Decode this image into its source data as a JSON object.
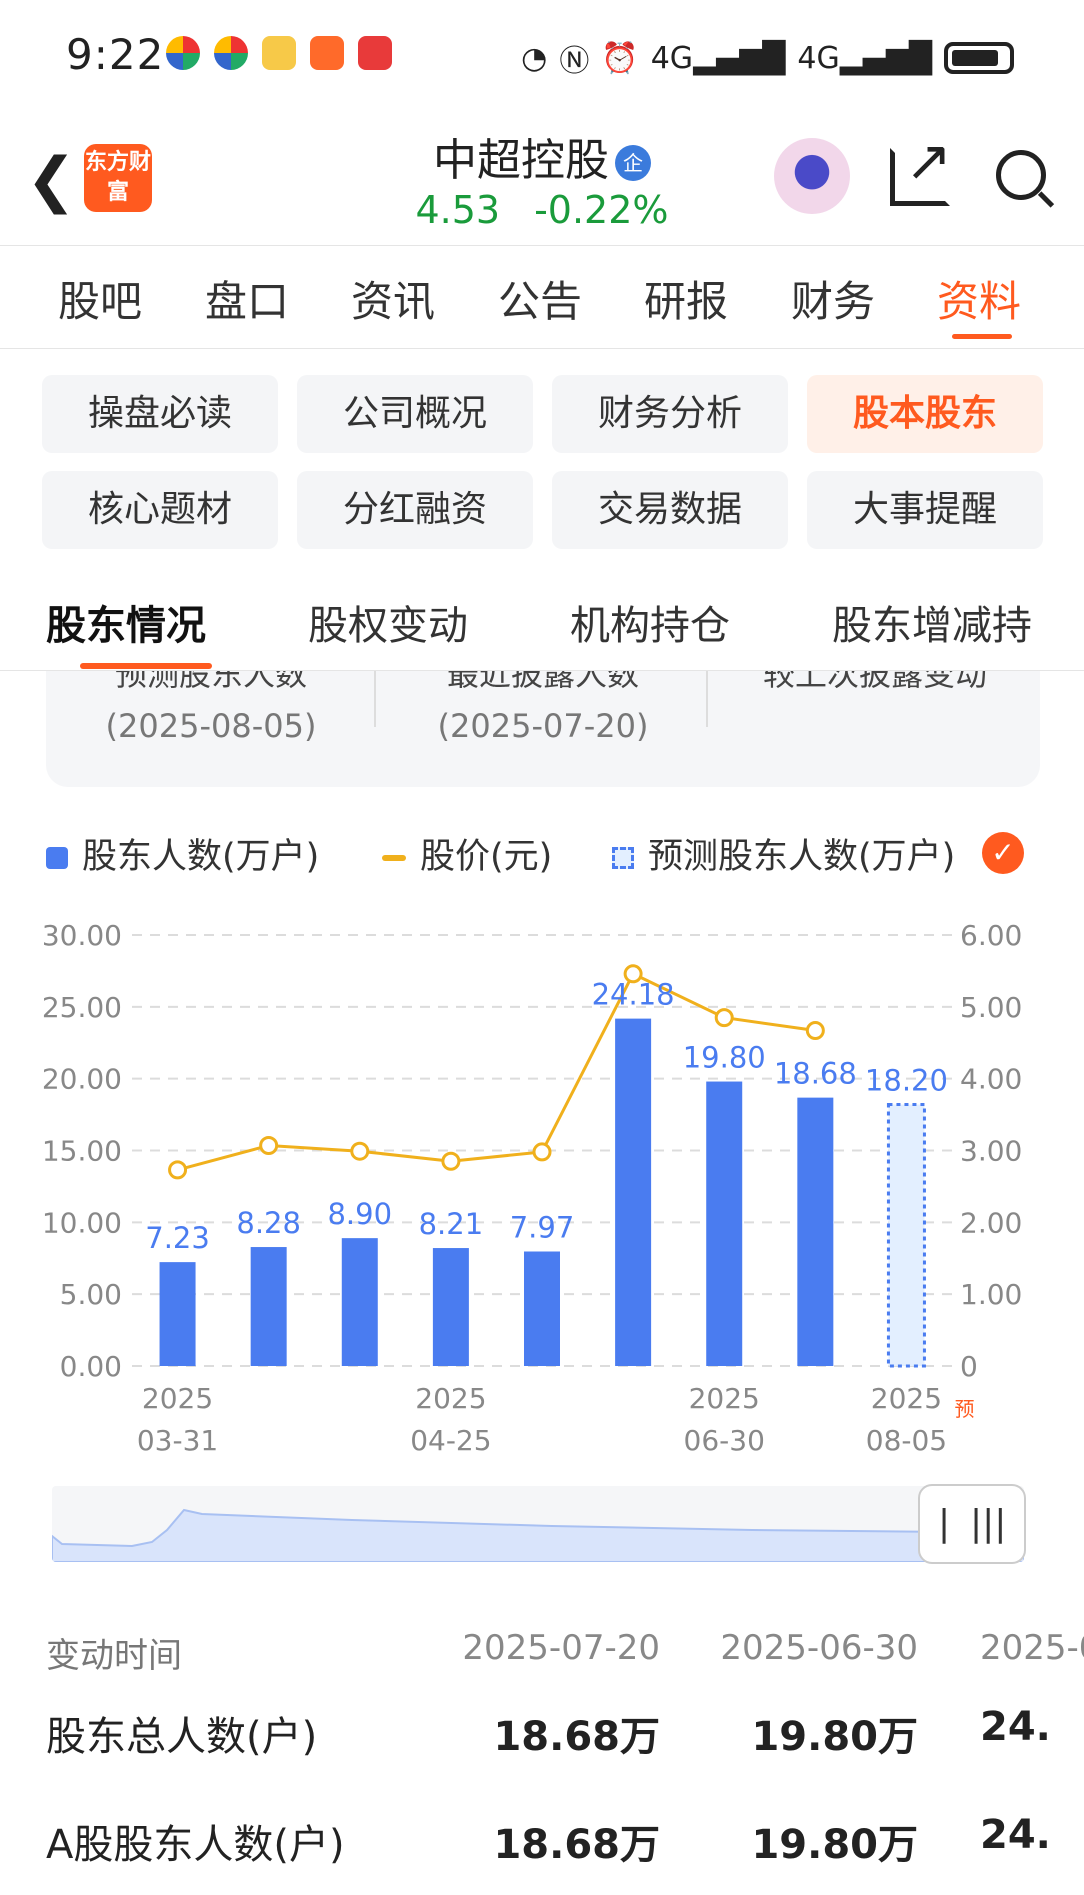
{
  "status_bar": {
    "time": "9:22",
    "net1": "4G",
    "net2": "4G"
  },
  "header": {
    "logo_text": "东方财富",
    "stock_name": "中超控股",
    "badge": "企",
    "price": "4.53",
    "change": "-0.22%"
  },
  "main_tabs": [
    "股吧",
    "盘口",
    "资讯",
    "公告",
    "研报",
    "财务",
    "资料"
  ],
  "sub_grid": [
    "操盘必读",
    "公司概况",
    "财务分析",
    "股本股东",
    "核心题材",
    "分红融资",
    "交易数据",
    "大事提醒"
  ],
  "shareholder_tabs": [
    "股东情况",
    "股权变动",
    "机构持仓",
    "股东增减持"
  ],
  "info_card": {
    "labels": [
      "预测股东人数",
      "最近披露人数",
      "较上次披露变动"
    ],
    "dates": [
      "(2025-08-05)",
      "(2025-07-20)"
    ]
  },
  "legend": {
    "bar": "股东人数(万户)",
    "line": "股价(元)",
    "predicted": "预测股东人数(万户)"
  },
  "chart_data": {
    "type": "bar",
    "bars": [
      7.23,
      8.28,
      8.9,
      8.21,
      7.97,
      24.18,
      19.8,
      18.68,
      18.2
    ],
    "bar_labels": [
      "7.23",
      "8.28",
      "8.90",
      "8.21",
      "7.97",
      "24.18",
      "19.80",
      "18.68",
      "18.20"
    ],
    "predicted_index": 8,
    "price_line": [
      2.73,
      3.07,
      2.99,
      2.85,
      2.98,
      5.46,
      4.85,
      4.67
    ],
    "left_ticks": [
      "30.00",
      "25.00",
      "20.00",
      "15.00",
      "10.00",
      "5.00",
      "0.00"
    ],
    "right_ticks": [
      "6.00",
      "5.00",
      "4.00",
      "3.00",
      "2.00",
      "1.00",
      "0"
    ],
    "y_left_range": [
      0,
      30
    ],
    "y_right_range": [
      0,
      6
    ],
    "x_labels": [
      {
        "year": "2025",
        "date": "03-31",
        "index": 0
      },
      {
        "year": "2025",
        "date": "04-25",
        "index": 3
      },
      {
        "year": "2025",
        "date": "06-30",
        "index": 6
      },
      {
        "year": "2025",
        "date": "08-05",
        "index": 8
      }
    ],
    "predicted_mark": "预",
    "colors": {
      "bar": "#4a7cf0",
      "line": "#f0b01c",
      "label": "#4a7cf0",
      "predicted_fill": "#e3efff"
    }
  },
  "table": {
    "header": [
      "变动时间",
      "2025-07-20",
      "2025-06-30",
      "2025-0"
    ],
    "rows": [
      {
        "label": "股东总人数(户)",
        "values": [
          "18.68万",
          "19.80万",
          "24."
        ]
      },
      {
        "label": "A股股东人数(户)",
        "values": [
          "18.68万",
          "19.80万",
          "24."
        ]
      }
    ]
  }
}
